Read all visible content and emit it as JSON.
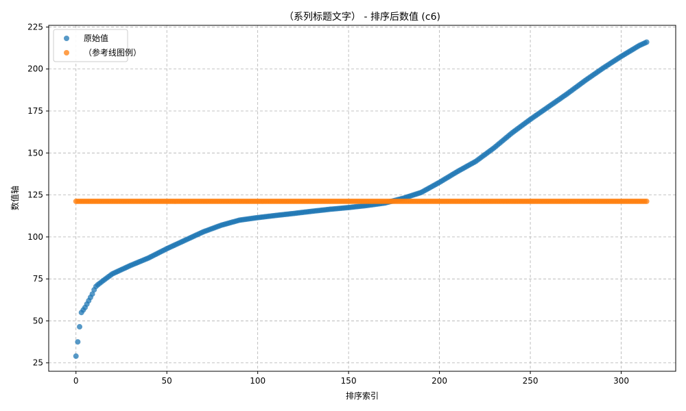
{
  "chart_data": {
    "type": "scatter",
    "title": "（系列标题文字） - 排序后数值 (c6)",
    "xlabel": "排序索引",
    "ylabel": "数值轴",
    "xlim": [
      -15,
      330
    ],
    "ylim": [
      20,
      226
    ],
    "x_ticks": [
      0,
      50,
      100,
      150,
      200,
      250,
      300
    ],
    "y_ticks": [
      25,
      50,
      75,
      100,
      125,
      150,
      175,
      200,
      225
    ],
    "grid": true,
    "legend_position": "top-left",
    "series": [
      {
        "name": "原始值",
        "color": "#1f77b4",
        "x_range": [
          0,
          314
        ],
        "profile": [
          [
            0,
            29
          ],
          [
            1,
            37.5
          ],
          [
            2,
            46.5
          ],
          [
            3,
            55
          ],
          [
            4,
            56.5
          ],
          [
            5,
            58
          ],
          [
            6,
            60
          ],
          [
            7,
            62
          ],
          [
            8,
            64
          ],
          [
            9,
            66
          ],
          [
            10,
            68.5
          ],
          [
            11,
            70.5
          ],
          [
            12,
            71.5
          ],
          [
            15,
            74
          ],
          [
            20,
            78
          ],
          [
            25,
            80.5
          ],
          [
            30,
            83
          ],
          [
            40,
            87.5
          ],
          [
            50,
            93
          ],
          [
            60,
            98
          ],
          [
            70,
            103
          ],
          [
            80,
            107
          ],
          [
            90,
            110
          ],
          [
            100,
            111.5
          ],
          [
            110,
            112.8
          ],
          [
            120,
            114
          ],
          [
            130,
            115.3
          ],
          [
            140,
            116.5
          ],
          [
            150,
            117.5
          ],
          [
            160,
            118.7
          ],
          [
            170,
            120.2
          ],
          [
            180,
            123
          ],
          [
            190,
            126.5
          ],
          [
            200,
            132.5
          ],
          [
            210,
            139
          ],
          [
            220,
            145
          ],
          [
            230,
            153
          ],
          [
            240,
            162
          ],
          [
            250,
            170
          ],
          [
            260,
            177.5
          ],
          [
            270,
            185
          ],
          [
            280,
            193
          ],
          [
            290,
            200.5
          ],
          [
            300,
            207.5
          ],
          [
            310,
            214
          ],
          [
            314,
            216
          ]
        ]
      },
      {
        "name": "（参考线图例）",
        "color": "#ff7f0e",
        "x_range": [
          0,
          314
        ],
        "constant": 121.2
      }
    ]
  }
}
